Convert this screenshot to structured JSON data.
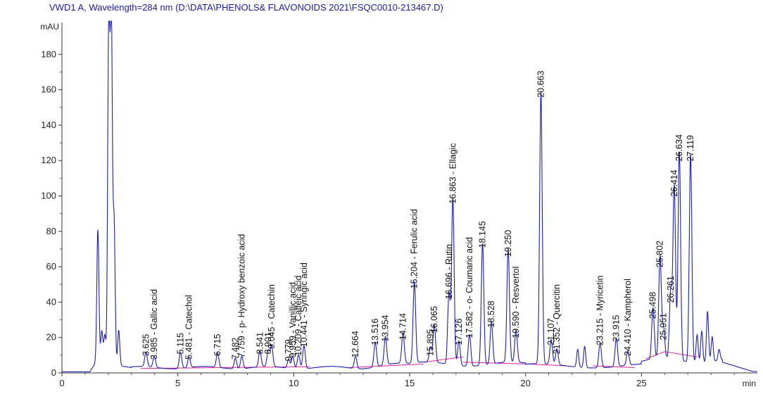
{
  "header": {
    "title": "VWD1 A, Wavelength=284 nm (D:\\DATA\\PHENOLS& FLAVONOIDS 2021\\FSQC0010-213467.D)"
  },
  "chart_data": {
    "type": "line",
    "title": "VWD1 A, Wavelength=284 nm (D:\\DATA\\PHENOLS& FLAVONOIDS 2021\\FSQC0010-213467.D)",
    "ylabel": "mAU",
    "xlabel": "min",
    "xlim": [
      0,
      30
    ],
    "ylim": [
      0,
      198
    ],
    "x_ticks": [
      0,
      5,
      10,
      15,
      20,
      25
    ],
    "y_ticks": [
      0,
      20,
      40,
      60,
      80,
      100,
      120,
      140,
      160,
      180
    ],
    "x_tick_labels": [
      "0",
      "5",
      "10",
      "15",
      "20",
      "25"
    ],
    "y_tick_labels": [
      "0",
      "20",
      "40",
      "60",
      "80",
      "100",
      "120",
      "140",
      "160",
      "180"
    ],
    "line_color": "#1f1fb0",
    "baseline_color": "#e0209a",
    "peaks": [
      {
        "rt": 3.625,
        "height": 8,
        "label": "3.625"
      },
      {
        "rt": 3.985,
        "height": 6,
        "label": "3.985 - Gallic acid"
      },
      {
        "rt": 5.115,
        "height": 9,
        "label": "5.115"
      },
      {
        "rt": 5.481,
        "height": 6,
        "label": "5.481 - Catechol"
      },
      {
        "rt": 6.715,
        "height": 8,
        "label": "6.715"
      },
      {
        "rt": 7.482,
        "height": 6,
        "label": "7.482"
      },
      {
        "rt": 7.759,
        "height": 7,
        "label": "7.759 - p- Hydroxy benzoic acid"
      },
      {
        "rt": 8.541,
        "height": 9,
        "label": "8.541"
      },
      {
        "rt": 8.901,
        "height": 9,
        "label": "8.901"
      },
      {
        "rt": 9.045,
        "height": 12,
        "label": "9.045 - Catechin"
      },
      {
        "rt": 9.779,
        "height": 5,
        "label": "9.779"
      },
      {
        "rt": 9.959,
        "height": 7,
        "label": "9.959 - Vanillic acid"
      },
      {
        "rt": 10.209,
        "height": 8,
        "label": "10.209 - Caffeic acid"
      },
      {
        "rt": 10.441,
        "height": 13,
        "label": "10.441 - Syringic acid"
      },
      {
        "rt": 12.664,
        "height": 7,
        "label": "12.664"
      },
      {
        "rt": 13.516,
        "height": 14,
        "label": "13.516"
      },
      {
        "rt": 13.954,
        "height": 16,
        "label": "13.954"
      },
      {
        "rt": 14.714,
        "height": 17,
        "label": "14.714"
      },
      {
        "rt": 15.204,
        "height": 46,
        "label": "15.204 - Ferulic acid"
      },
      {
        "rt": 15.895,
        "height": 8,
        "label": "15.895"
      },
      {
        "rt": 16.065,
        "height": 21,
        "label": "16.065"
      },
      {
        "rt": 16.696,
        "height": 40,
        "label": "16.696 - Rutin"
      },
      {
        "rt": 16.863,
        "height": 94,
        "label": "16.863 - Ellagic"
      },
      {
        "rt": 17.126,
        "height": 14,
        "label": "17.126"
      },
      {
        "rt": 17.582,
        "height": 18,
        "label": "17.582 - o- Coumaric acid"
      },
      {
        "rt": 18.145,
        "height": 69,
        "label": "18.145"
      },
      {
        "rt": 18.528,
        "height": 24,
        "label": "18.528"
      },
      {
        "rt": 19.25,
        "height": 64,
        "label": "19.250"
      },
      {
        "rt": 19.59,
        "height": 18,
        "label": "19.590 - Resvertol"
      },
      {
        "rt": 20.663,
        "height": 154,
        "label": "20.663"
      },
      {
        "rt": 21.107,
        "height": 14,
        "label": "21.107"
      },
      {
        "rt": 21.352,
        "height": 9,
        "label": "21.352 - Quercitin"
      },
      {
        "rt": 23.215,
        "height": 14,
        "label": "23.215 - Myricetin"
      },
      {
        "rt": 23.915,
        "height": 16,
        "label": "23.915"
      },
      {
        "rt": 24.41,
        "height": 8,
        "label": "24.410 - Kampherol"
      },
      {
        "rt": 25.498,
        "height": 29,
        "label": "25.498"
      },
      {
        "rt": 25.802,
        "height": 58,
        "label": "25.802"
      },
      {
        "rt": 25.951,
        "height": 17,
        "label": "25.951"
      },
      {
        "rt": 26.261,
        "height": 38,
        "label": "26.261"
      },
      {
        "rt": 26.414,
        "height": 98,
        "label": "26.414"
      },
      {
        "rt": 26.634,
        "height": 118,
        "label": "26.634"
      },
      {
        "rt": 27.119,
        "height": 118,
        "label": "27.119"
      }
    ],
    "unlabeled_peaks": [
      {
        "rt": 1.55,
        "height": 75
      },
      {
        "rt": 1.72,
        "height": 18
      },
      {
        "rt": 1.85,
        "height": 16
      },
      {
        "rt": 2.02,
        "height": 198
      },
      {
        "rt": 2.13,
        "height": 198
      },
      {
        "rt": 2.25,
        "height": 80
      },
      {
        "rt": 2.45,
        "height": 20
      },
      {
        "rt": 22.25,
        "height": 10
      },
      {
        "rt": 22.55,
        "height": 12
      },
      {
        "rt": 27.4,
        "height": 16
      },
      {
        "rt": 27.6,
        "height": 18
      },
      {
        "rt": 27.85,
        "height": 29
      },
      {
        "rt": 28.05,
        "height": 14
      },
      {
        "rt": 28.35,
        "height": 6
      }
    ]
  }
}
